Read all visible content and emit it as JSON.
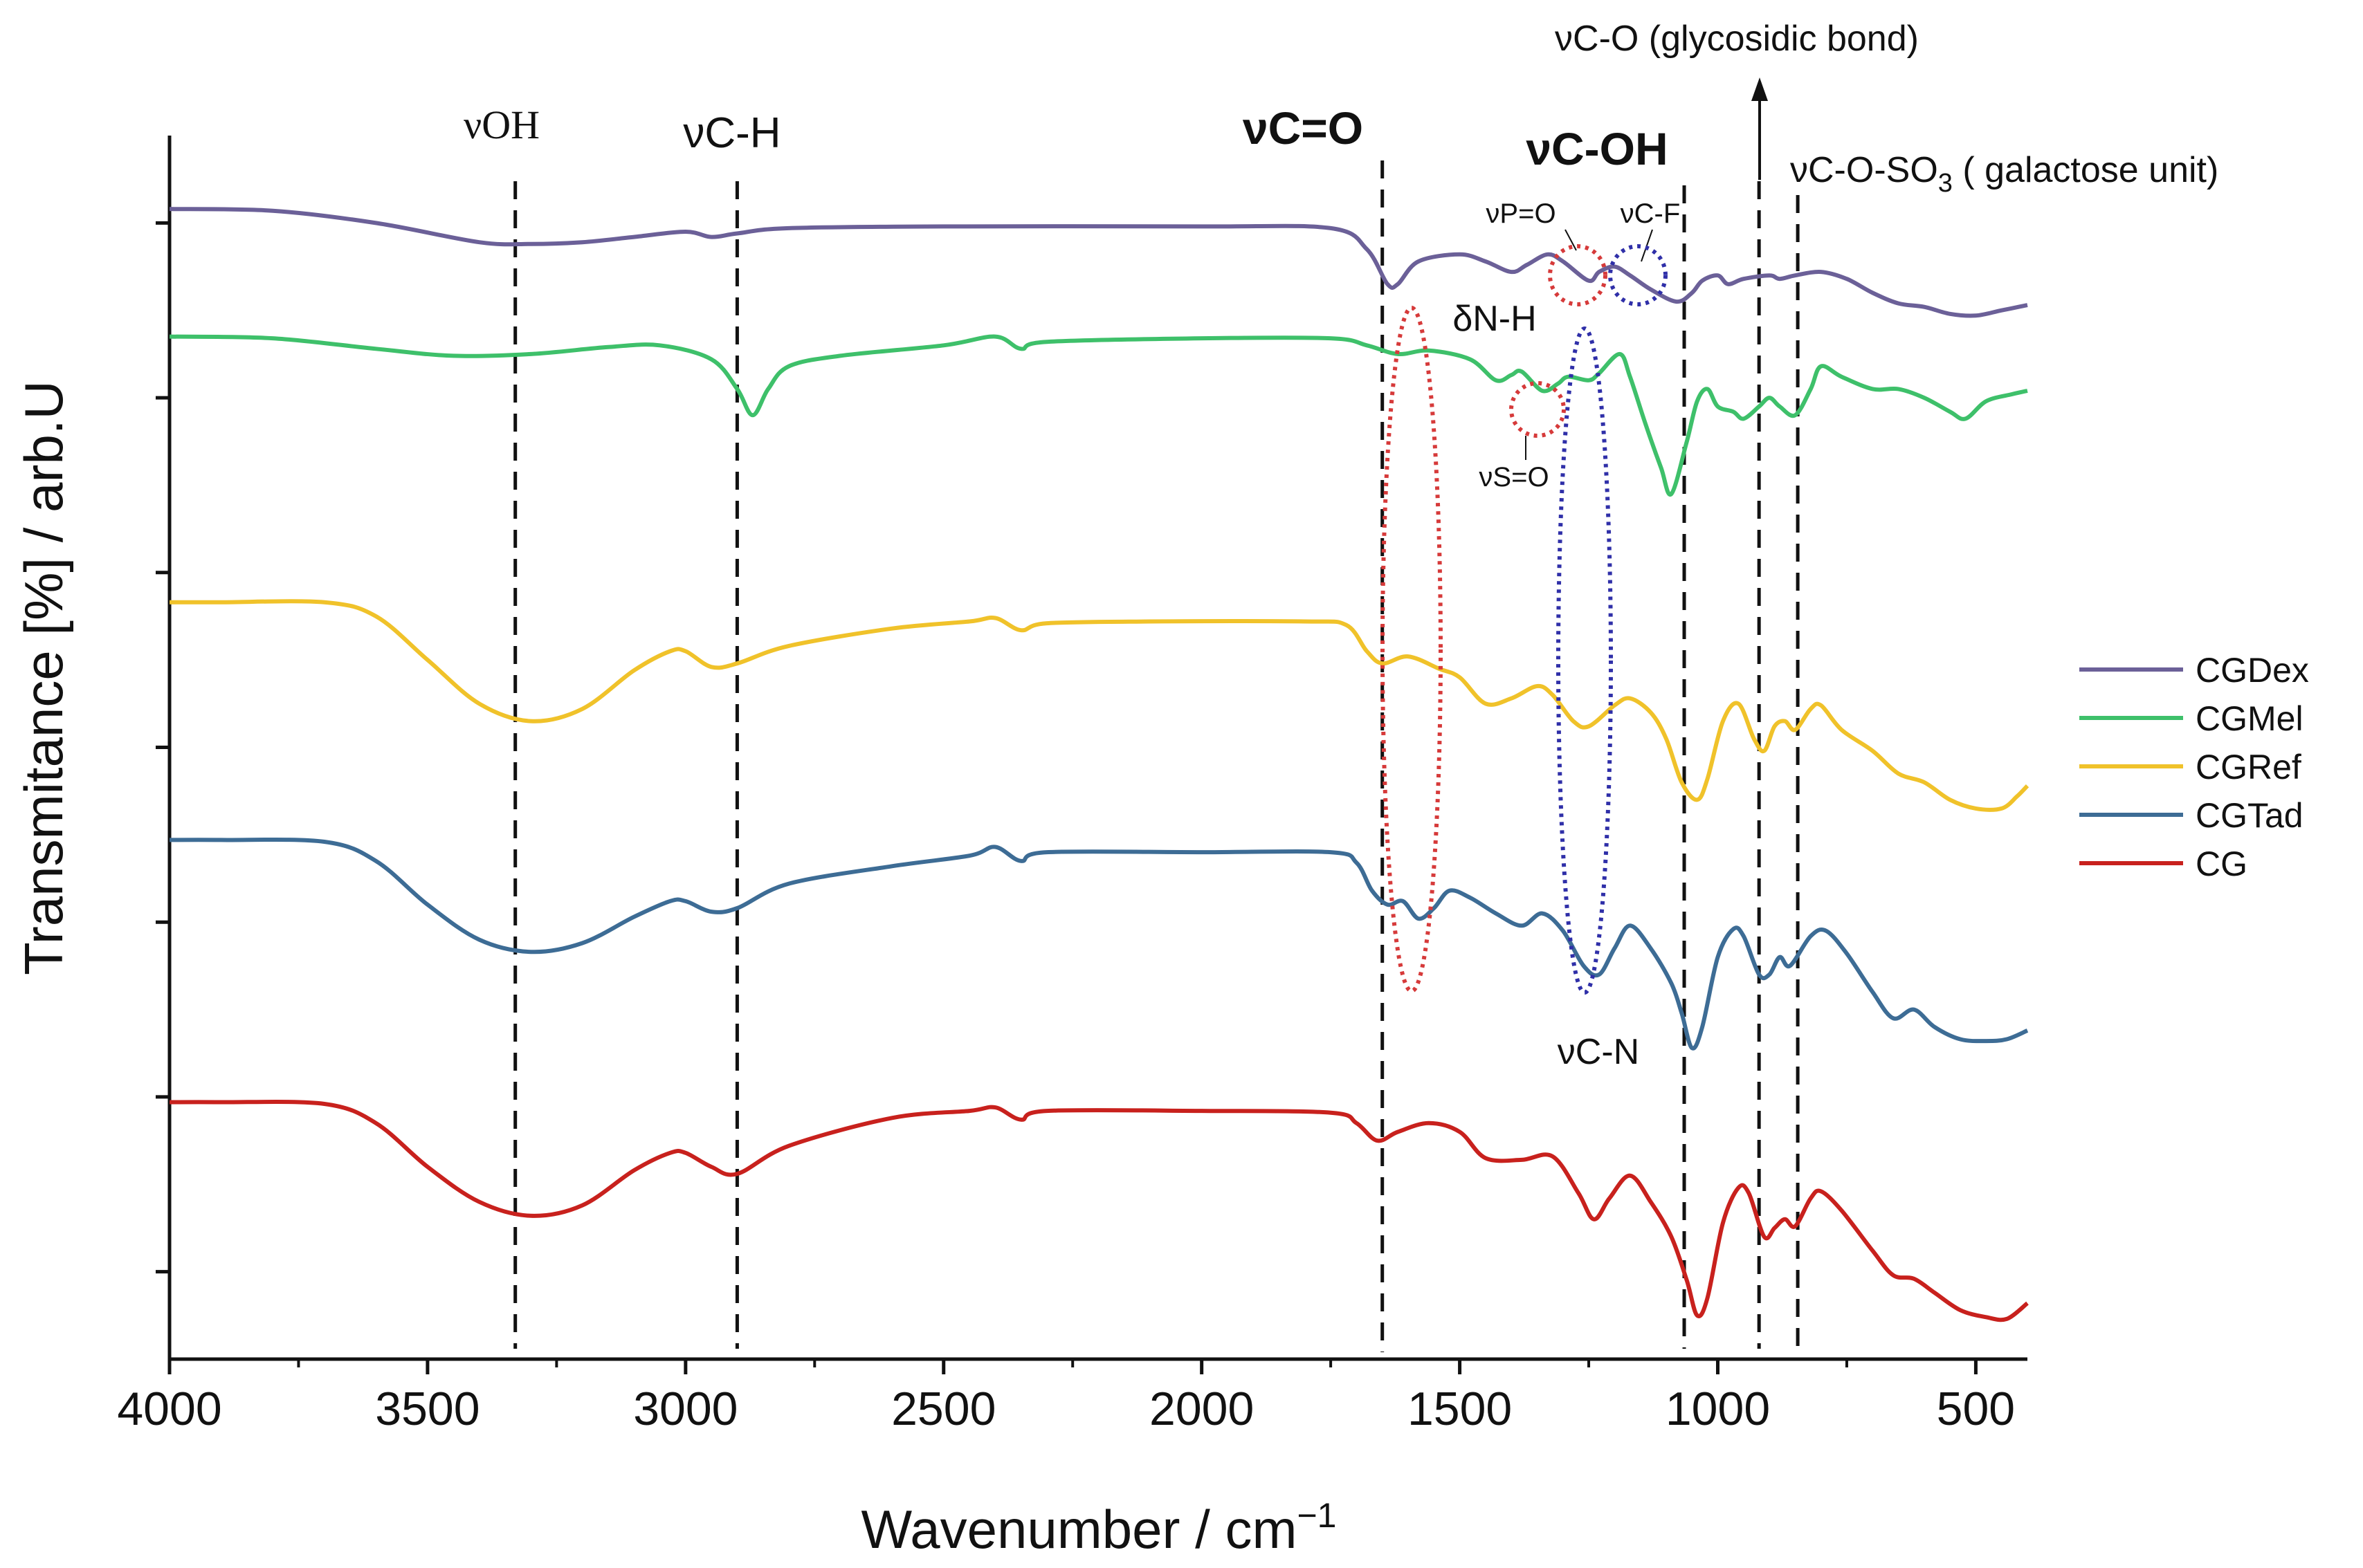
{
  "chart_data": {
    "type": "line",
    "title": "",
    "xlabel": "Wavenumber / cm",
    "xlabel_superscript": "−1",
    "ylabel": "Transmitance [%] / arb.U",
    "xlim": [
      4000,
      400
    ],
    "x_reversed": true,
    "ylim": [
      0,
      7
    ],
    "x_ticks": [
      4000,
      3500,
      3000,
      2500,
      2000,
      1500,
      1000,
      500
    ],
    "y_ticks_count": 7,
    "y_tick_labels_shown": false,
    "legend_position": "right",
    "series": [
      {
        "name": "CGDex",
        "color": "#6b6098",
        "points": [
          [
            4000,
            6.58
          ],
          [
            3800,
            6.57
          ],
          [
            3600,
            6.5
          ],
          [
            3400,
            6.39
          ],
          [
            3300,
            6.38
          ],
          [
            3200,
            6.39
          ],
          [
            3100,
            6.42
          ],
          [
            3000,
            6.45
          ],
          [
            2950,
            6.42
          ],
          [
            2900,
            6.44
          ],
          [
            2800,
            6.47
          ],
          [
            2500,
            6.48
          ],
          [
            2000,
            6.48
          ],
          [
            1750,
            6.47
          ],
          [
            1680,
            6.35
          ],
          [
            1640,
            6.15
          ],
          [
            1620,
            6.15
          ],
          [
            1580,
            6.28
          ],
          [
            1500,
            6.32
          ],
          [
            1450,
            6.28
          ],
          [
            1400,
            6.22
          ],
          [
            1370,
            6.26
          ],
          [
            1330,
            6.32
          ],
          [
            1300,
            6.28
          ],
          [
            1250,
            6.17
          ],
          [
            1230,
            6.22
          ],
          [
            1200,
            6.25
          ],
          [
            1170,
            6.2
          ],
          [
            1130,
            6.12
          ],
          [
            1080,
            6.05
          ],
          [
            1050,
            6.1
          ],
          [
            1030,
            6.17
          ],
          [
            1000,
            6.2
          ],
          [
            980,
            6.15
          ],
          [
            950,
            6.18
          ],
          [
            900,
            6.2
          ],
          [
            880,
            6.18
          ],
          [
            850,
            6.2
          ],
          [
            800,
            6.22
          ],
          [
            750,
            6.18
          ],
          [
            700,
            6.1
          ],
          [
            650,
            6.04
          ],
          [
            600,
            6.02
          ],
          [
            550,
            5.98
          ],
          [
            500,
            5.97
          ],
          [
            450,
            6.0
          ],
          [
            400,
            6.03
          ]
        ]
      },
      {
        "name": "CGMel",
        "color": "#3ec06a",
        "points": [
          [
            4000,
            5.85
          ],
          [
            3800,
            5.84
          ],
          [
            3600,
            5.78
          ],
          [
            3450,
            5.74
          ],
          [
            3300,
            5.75
          ],
          [
            3150,
            5.79
          ],
          [
            3050,
            5.8
          ],
          [
            2950,
            5.72
          ],
          [
            2900,
            5.55
          ],
          [
            2870,
            5.4
          ],
          [
            2840,
            5.55
          ],
          [
            2800,
            5.68
          ],
          [
            2700,
            5.74
          ],
          [
            2500,
            5.8
          ],
          [
            2400,
            5.85
          ],
          [
            2350,
            5.78
          ],
          [
            2300,
            5.82
          ],
          [
            2000,
            5.84
          ],
          [
            1750,
            5.84
          ],
          [
            1680,
            5.8
          ],
          [
            1620,
            5.75
          ],
          [
            1560,
            5.77
          ],
          [
            1480,
            5.72
          ],
          [
            1430,
            5.6
          ],
          [
            1400,
            5.63
          ],
          [
            1380,
            5.65
          ],
          [
            1340,
            5.54
          ],
          [
            1310,
            5.58
          ],
          [
            1290,
            5.62
          ],
          [
            1250,
            5.6
          ],
          [
            1230,
            5.64
          ],
          [
            1190,
            5.75
          ],
          [
            1170,
            5.62
          ],
          [
            1140,
            5.35
          ],
          [
            1110,
            5.1
          ],
          [
            1090,
            4.95
          ],
          [
            1060,
            5.25
          ],
          [
            1040,
            5.48
          ],
          [
            1020,
            5.55
          ],
          [
            1000,
            5.45
          ],
          [
            970,
            5.42
          ],
          [
            950,
            5.38
          ],
          [
            920,
            5.45
          ],
          [
            900,
            5.5
          ],
          [
            880,
            5.45
          ],
          [
            850,
            5.4
          ],
          [
            820,
            5.55
          ],
          [
            800,
            5.68
          ],
          [
            760,
            5.62
          ],
          [
            700,
            5.55
          ],
          [
            650,
            5.55
          ],
          [
            600,
            5.5
          ],
          [
            550,
            5.42
          ],
          [
            520,
            5.38
          ],
          [
            480,
            5.48
          ],
          [
            430,
            5.52
          ],
          [
            400,
            5.54
          ]
        ]
      },
      {
        "name": "CGRef",
        "color": "#f0c22a",
        "points": [
          [
            4000,
            4.33
          ],
          [
            3900,
            4.33
          ],
          [
            3700,
            4.33
          ],
          [
            3600,
            4.25
          ],
          [
            3500,
            4.0
          ],
          [
            3400,
            3.75
          ],
          [
            3300,
            3.65
          ],
          [
            3200,
            3.72
          ],
          [
            3100,
            3.94
          ],
          [
            3030,
            4.05
          ],
          [
            3000,
            4.05
          ],
          [
            2950,
            3.96
          ],
          [
            2900,
            3.98
          ],
          [
            2800,
            4.08
          ],
          [
            2600,
            4.18
          ],
          [
            2450,
            4.22
          ],
          [
            2400,
            4.24
          ],
          [
            2350,
            4.17
          ],
          [
            2300,
            4.21
          ],
          [
            2100,
            4.22
          ],
          [
            1800,
            4.22
          ],
          [
            1720,
            4.2
          ],
          [
            1680,
            4.05
          ],
          [
            1650,
            3.98
          ],
          [
            1600,
            4.02
          ],
          [
            1540,
            3.95
          ],
          [
            1500,
            3.9
          ],
          [
            1450,
            3.75
          ],
          [
            1400,
            3.78
          ],
          [
            1350,
            3.85
          ],
          [
            1320,
            3.8
          ],
          [
            1280,
            3.65
          ],
          [
            1250,
            3.62
          ],
          [
            1200,
            3.74
          ],
          [
            1170,
            3.78
          ],
          [
            1130,
            3.7
          ],
          [
            1100,
            3.55
          ],
          [
            1070,
            3.3
          ],
          [
            1040,
            3.2
          ],
          [
            1020,
            3.32
          ],
          [
            990,
            3.65
          ],
          [
            960,
            3.75
          ],
          [
            930,
            3.55
          ],
          [
            910,
            3.48
          ],
          [
            890,
            3.62
          ],
          [
            870,
            3.65
          ],
          [
            850,
            3.6
          ],
          [
            820,
            3.72
          ],
          [
            800,
            3.74
          ],
          [
            760,
            3.6
          ],
          [
            700,
            3.48
          ],
          [
            650,
            3.35
          ],
          [
            600,
            3.3
          ],
          [
            550,
            3.2
          ],
          [
            500,
            3.15
          ],
          [
            450,
            3.15
          ],
          [
            420,
            3.22
          ],
          [
            400,
            3.28
          ]
        ]
      },
      {
        "name": "CGTad",
        "color": "#3d6c95",
        "points": [
          [
            4000,
            2.97
          ],
          [
            3900,
            2.97
          ],
          [
            3700,
            2.96
          ],
          [
            3600,
            2.85
          ],
          [
            3500,
            2.6
          ],
          [
            3400,
            2.4
          ],
          [
            3300,
            2.33
          ],
          [
            3200,
            2.38
          ],
          [
            3100,
            2.53
          ],
          [
            3030,
            2.62
          ],
          [
            3000,
            2.62
          ],
          [
            2950,
            2.56
          ],
          [
            2900,
            2.58
          ],
          [
            2800,
            2.72
          ],
          [
            2600,
            2.82
          ],
          [
            2450,
            2.88
          ],
          [
            2400,
            2.93
          ],
          [
            2350,
            2.85
          ],
          [
            2300,
            2.9
          ],
          [
            2000,
            2.9
          ],
          [
            1750,
            2.9
          ],
          [
            1700,
            2.84
          ],
          [
            1670,
            2.68
          ],
          [
            1640,
            2.6
          ],
          [
            1610,
            2.62
          ],
          [
            1580,
            2.52
          ],
          [
            1550,
            2.58
          ],
          [
            1520,
            2.68
          ],
          [
            1480,
            2.64
          ],
          [
            1430,
            2.55
          ],
          [
            1380,
            2.48
          ],
          [
            1340,
            2.55
          ],
          [
            1300,
            2.45
          ],
          [
            1260,
            2.25
          ],
          [
            1230,
            2.2
          ],
          [
            1200,
            2.35
          ],
          [
            1170,
            2.48
          ],
          [
            1130,
            2.35
          ],
          [
            1090,
            2.15
          ],
          [
            1070,
            1.98
          ],
          [
            1050,
            1.78
          ],
          [
            1030,
            1.9
          ],
          [
            1000,
            2.3
          ],
          [
            970,
            2.46
          ],
          [
            950,
            2.42
          ],
          [
            920,
            2.2
          ],
          [
            900,
            2.2
          ],
          [
            880,
            2.3
          ],
          [
            860,
            2.25
          ],
          [
            820,
            2.42
          ],
          [
            790,
            2.45
          ],
          [
            750,
            2.32
          ],
          [
            700,
            2.1
          ],
          [
            660,
            1.95
          ],
          [
            620,
            2.0
          ],
          [
            580,
            1.9
          ],
          [
            530,
            1.83
          ],
          [
            480,
            1.82
          ],
          [
            440,
            1.83
          ],
          [
            400,
            1.88
          ]
        ]
      },
      {
        "name": "CG",
        "color": "#c8211d",
        "points": [
          [
            4000,
            1.47
          ],
          [
            3900,
            1.47
          ],
          [
            3700,
            1.46
          ],
          [
            3600,
            1.35
          ],
          [
            3500,
            1.1
          ],
          [
            3400,
            0.9
          ],
          [
            3300,
            0.82
          ],
          [
            3200,
            0.88
          ],
          [
            3100,
            1.08
          ],
          [
            3030,
            1.18
          ],
          [
            3000,
            1.18
          ],
          [
            2950,
            1.1
          ],
          [
            2900,
            1.06
          ],
          [
            2800,
            1.22
          ],
          [
            2600,
            1.38
          ],
          [
            2450,
            1.42
          ],
          [
            2400,
            1.44
          ],
          [
            2350,
            1.37
          ],
          [
            2300,
            1.42
          ],
          [
            2000,
            1.42
          ],
          [
            1750,
            1.41
          ],
          [
            1700,
            1.35
          ],
          [
            1660,
            1.25
          ],
          [
            1620,
            1.3
          ],
          [
            1560,
            1.35
          ],
          [
            1500,
            1.3
          ],
          [
            1450,
            1.15
          ],
          [
            1380,
            1.14
          ],
          [
            1320,
            1.16
          ],
          [
            1270,
            0.95
          ],
          [
            1240,
            0.8
          ],
          [
            1210,
            0.92
          ],
          [
            1170,
            1.05
          ],
          [
            1130,
            0.9
          ],
          [
            1090,
            0.7
          ],
          [
            1060,
            0.45
          ],
          [
            1040,
            0.25
          ],
          [
            1020,
            0.35
          ],
          [
            990,
            0.78
          ],
          [
            960,
            0.98
          ],
          [
            940,
            0.95
          ],
          [
            910,
            0.7
          ],
          [
            890,
            0.75
          ],
          [
            870,
            0.8
          ],
          [
            850,
            0.76
          ],
          [
            820,
            0.92
          ],
          [
            800,
            0.96
          ],
          [
            760,
            0.85
          ],
          [
            700,
            0.62
          ],
          [
            660,
            0.48
          ],
          [
            620,
            0.46
          ],
          [
            580,
            0.38
          ],
          [
            530,
            0.28
          ],
          [
            480,
            0.24
          ],
          [
            440,
            0.23
          ],
          [
            400,
            0.32
          ]
        ]
      }
    ],
    "vertical_markers": [
      {
        "name": "vOH",
        "x": 3330
      },
      {
        "name": "vC-H",
        "x": 2900
      },
      {
        "name": "vC=O",
        "x": 1650
      },
      {
        "name": "vC-OH",
        "x": 1065
      },
      {
        "name": "vC-O",
        "x": 920
      },
      {
        "name": "vC-O-SO3",
        "x": 845
      }
    ],
    "annotations": {
      "v_oh": "νOH",
      "v_ch": "νC-H",
      "v_co": "νC=O",
      "v_coh": "νC-OH",
      "v_co_glyco": "νC-O (glycosidic bond)",
      "v_coso3_main": "νC-O-SO",
      "v_coso3_sub": "3",
      "v_coso3_tail": " ( galactose unit)",
      "v_po": "νP=O",
      "v_cf": "νC-F",
      "d_nh": "δN-H",
      "v_so": "νS=O",
      "v_cn": "νC-N"
    },
    "annotation_colors": {
      "red_dotted": "#d63a3a",
      "blue_dotted": "#2f2fa8"
    }
  }
}
